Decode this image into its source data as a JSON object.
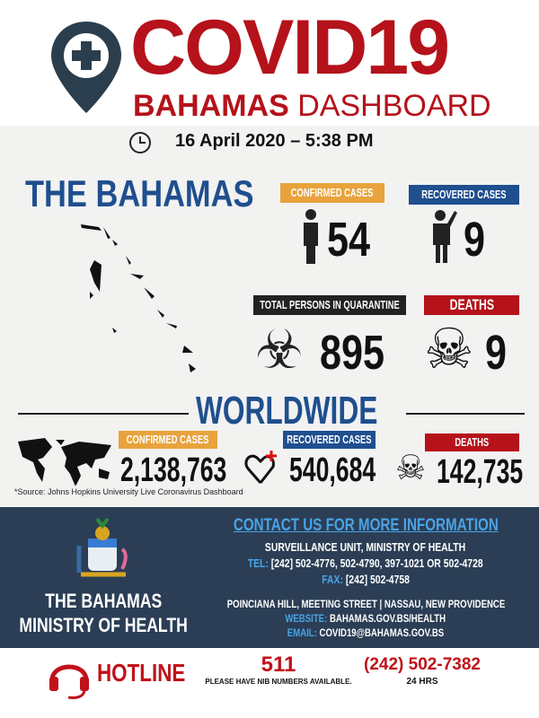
{
  "header": {
    "title": "COVID19",
    "subtitle_bold": "BAHAMAS",
    "subtitle_light": "DASHBOARD",
    "date": "16 April 2020 – 5:38 PM"
  },
  "bahamas": {
    "heading": "THE BAHAMAS",
    "confirmed": {
      "label": "CONFIRMED CASES",
      "value": "54",
      "color": "#e8a33d"
    },
    "recovered": {
      "label": "RECOVERED CASES",
      "value": "9",
      "color": "#1f4f8f"
    },
    "quarantine": {
      "label": "TOTAL PERSONS IN QUARANTINE",
      "value": "895",
      "color": "#222222"
    },
    "deaths": {
      "label": "DEATHS",
      "value": "9",
      "color": "#b5121b"
    }
  },
  "worldwide": {
    "heading": "WORLDWIDE",
    "confirmed": {
      "label": "CONFIRMED CASES",
      "value": "2,138,763"
    },
    "recovered": {
      "label": "RECOVERED CASES",
      "value": "540,684"
    },
    "deaths": {
      "label": "DEATHS",
      "value": "142,735"
    },
    "source": "*Source: Johns Hopkins University Live Coronavirus Dashboard"
  },
  "footer": {
    "org_line1": "THE BAHAMAS",
    "org_line2": "MINISTRY OF HEALTH",
    "contact_heading": "CONTACT US FOR MORE INFORMATION",
    "unit": "SURVEILLANCE UNIT, MINISTRY OF HEALTH",
    "tel_label": "TEL:",
    "tel": "[242] 502-4776, 502-4790, 397-1021 OR 502-4728",
    "fax_label": "FAX:",
    "fax": "[242] 502-4758",
    "address": "POINCIANA HILL, MEETING STREET | NASSAU, NEW PROVIDENCE",
    "website_label": "WEBSITE:",
    "website": "BAHAMAS.GOV.BS/HEALTH",
    "email_label": "EMAIL:",
    "email": "COVID19@BAHAMAS.GOV.BS"
  },
  "hotline": {
    "label": "HOTLINE",
    "number1": "511",
    "note1": "PLEASE HAVE NIB NUMBERS AVAILABLE.",
    "number2": "(242) 502-7382",
    "note2": "24 HRS"
  }
}
